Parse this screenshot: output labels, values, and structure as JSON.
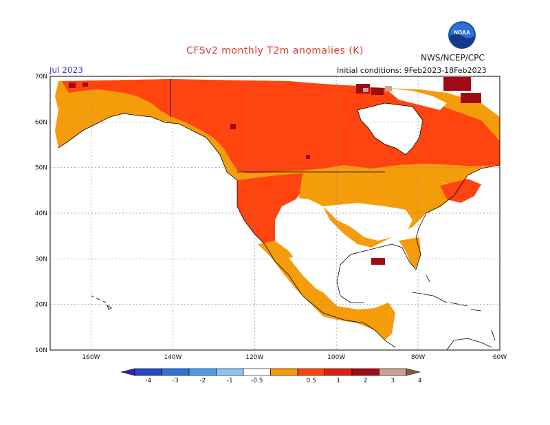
{
  "header": {
    "title": "CFSv2 monthly T2m anomalies (K)",
    "agency": "NWS/NCEP/CPC",
    "logo_text": "NOAA",
    "month": "Jul 2023",
    "initial_conditions": "Initial conditions: 9Feb2023-18Feb2023"
  },
  "map": {
    "lat_labels": [
      "70N",
      "60N",
      "50N",
      "40N",
      "30N",
      "20N",
      "10N"
    ],
    "lon_labels": [
      "160W",
      "140W",
      "120W",
      "100W",
      "80W",
      "60W"
    ],
    "lat_values": [
      70,
      60,
      50,
      40,
      30,
      20,
      10
    ],
    "lon_values": [
      -160,
      -140,
      -120,
      -100,
      -80,
      -60
    ],
    "extent": {
      "lon_min": -170,
      "lon_max": -60,
      "lat_min": 10,
      "lat_max": 70
    }
  },
  "colorbar": {
    "tick_labels": [
      "-4",
      "-3",
      "-2",
      "-1",
      "-0.5",
      "0.5",
      "1",
      "2",
      "3",
      "4"
    ],
    "colors": [
      "#3a1fae",
      "#2747c8",
      "#2f75d8",
      "#4d9be8",
      "#8cc3f2",
      "#ffffff",
      "#f59c0a",
      "#ff4410",
      "#e01f10",
      "#a00a14",
      "#c8a394",
      "#8a5a4a"
    ],
    "anomaly_colors": {
      "0.5-1": "#f59c0a",
      "1-2": "#ff4410",
      "2-3": "#a00a14",
      "3-4": "#c8a394"
    }
  }
}
